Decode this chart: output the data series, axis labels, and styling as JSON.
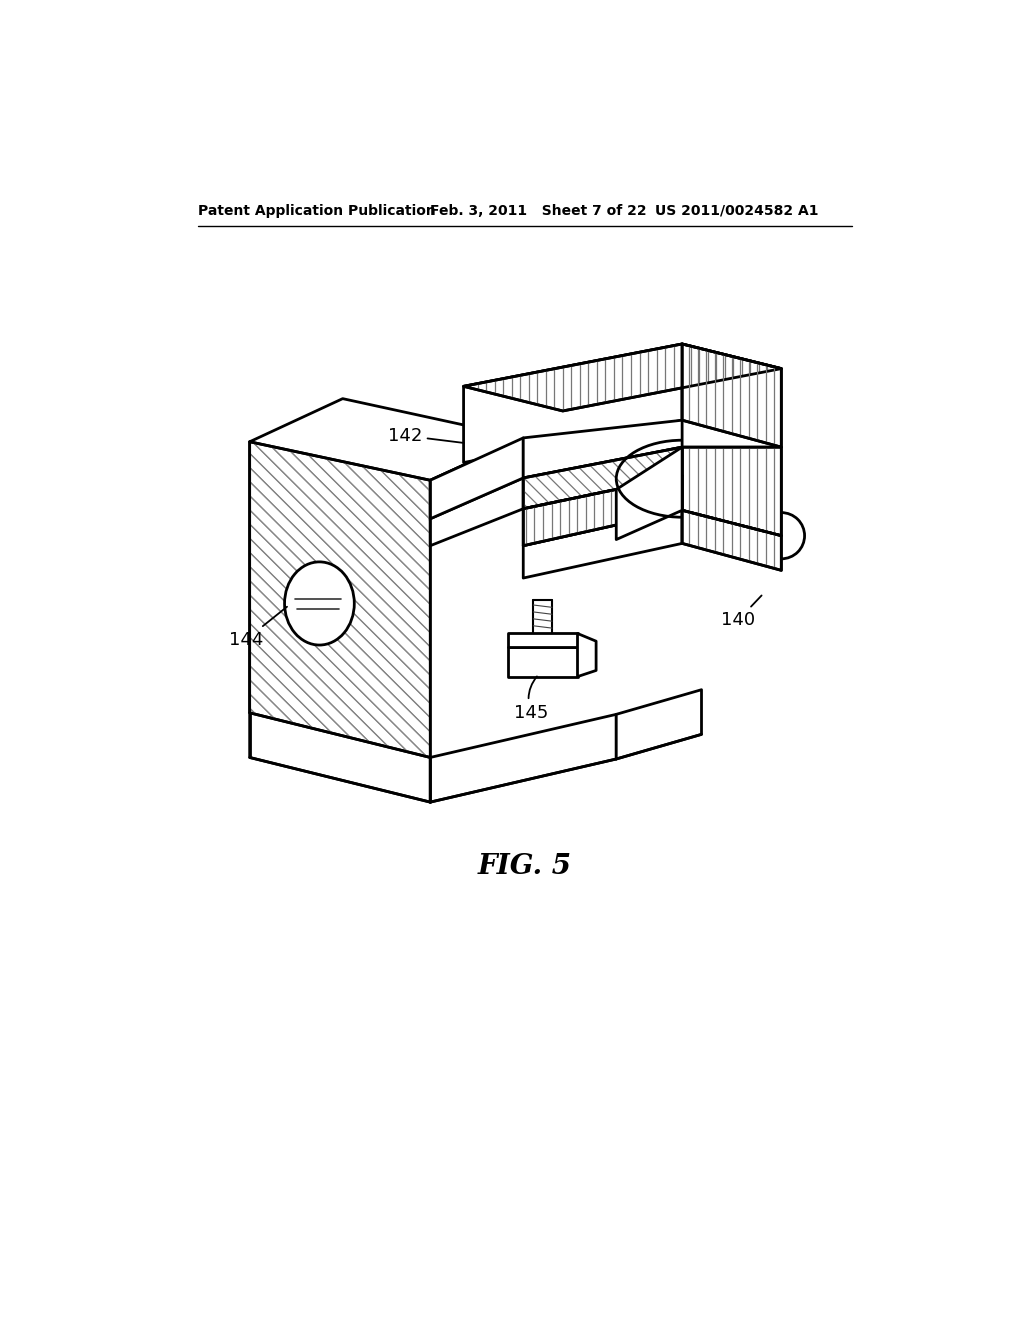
{
  "header_left": "Patent Application Publication",
  "header_mid": "Feb. 3, 2011   Sheet 7 of 22",
  "header_right": "US 2011/0024582 A1",
  "figure_label": "FIG. 5",
  "background_color": "#ffffff",
  "line_color": "#000000"
}
